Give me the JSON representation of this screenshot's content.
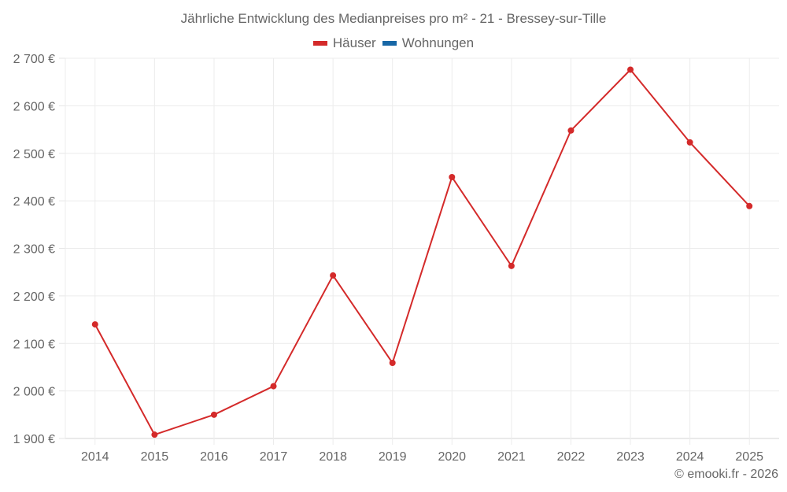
{
  "header": {
    "title": "Jährliche Entwicklung des Medianpreises pro m² - 21 - Bressey-sur-Tille"
  },
  "legend": [
    {
      "label": "Häuser",
      "color": "#d42a2a"
    },
    {
      "label": "Wohnungen",
      "color": "#1767a6"
    }
  ],
  "footer": {
    "credit": "© emooki.fr - 2026"
  },
  "chart_data": {
    "type": "line",
    "title": "Jährliche Entwicklung des Medianpreises pro m² - 21 - Bressey-sur-Tille",
    "xlabel": "",
    "ylabel": "",
    "categories": [
      "2014",
      "2015",
      "2016",
      "2017",
      "2018",
      "2019",
      "2020",
      "2021",
      "2022",
      "2023",
      "2024",
      "2025"
    ],
    "series": [
      {
        "name": "Häuser",
        "color": "#d42a2a",
        "values": [
          2140,
          1908,
          1950,
          2010,
          2243,
          2059,
          2450,
          2263,
          2548,
          2676,
          2523,
          2389
        ]
      },
      {
        "name": "Wohnungen",
        "color": "#1767a6",
        "values": []
      }
    ],
    "ylim": [
      1900,
      2700
    ],
    "yticks": [
      1900,
      2000,
      2100,
      2200,
      2300,
      2400,
      2500,
      2600,
      2700
    ],
    "ytick_labels": [
      "1 900 €",
      "2 000 €",
      "2 100 €",
      "2 200 €",
      "2 300 €",
      "2 400 €",
      "2 500 €",
      "2 600 €",
      "2 700 €"
    ],
    "grid": true,
    "legend_position": "top"
  }
}
